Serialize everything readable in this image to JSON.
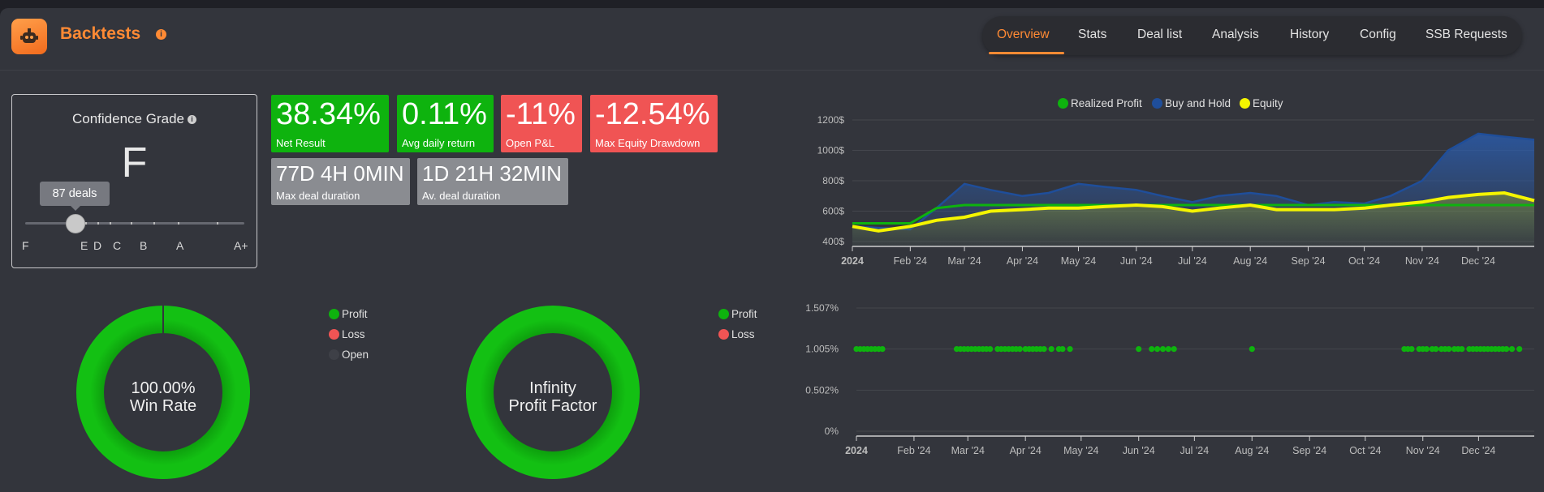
{
  "header": {
    "title": "Backtests",
    "info_icon": "info-icon",
    "logo_icon": "robot-icon",
    "tabs": [
      {
        "label": "Overview",
        "active": true
      },
      {
        "label": "Stats"
      },
      {
        "label": "Deal list"
      },
      {
        "label": "Analysis"
      },
      {
        "label": "History"
      },
      {
        "label": "Config"
      },
      {
        "label": "SSB Requests"
      }
    ],
    "menu_icon": "kebab-menu-icon"
  },
  "confidence": {
    "title": "Confidence Grade",
    "grade": "F",
    "tooltip": "87 deals",
    "scale": [
      "F",
      "E",
      "D",
      "C",
      "B",
      "A",
      "A+"
    ]
  },
  "tiles": [
    {
      "value": "38.34%",
      "label": "Net Result",
      "status": "positive"
    },
    {
      "value": "0.11%",
      "label": "Avg daily return",
      "status": "positive"
    },
    {
      "value": "-11%",
      "label": "Open P&L",
      "status": "negative"
    },
    {
      "value": "-12.54%",
      "label": "Max Equity Drawdown",
      "status": "negative"
    },
    {
      "value": "77D 4H 0MIN",
      "label": "Max deal duration",
      "status": "neutral"
    },
    {
      "value": "1D 21H 32MIN",
      "label": "Av. deal duration",
      "status": "neutral"
    }
  ],
  "colors": {
    "accent": "#ff8a34",
    "positive": "#0eb30e",
    "negative": "#f05454",
    "neutral": "#8a8c91",
    "buy_and_hold": "#1f4e9a",
    "equity": "#f5f500",
    "background": "#33353c"
  },
  "win_rate_donut": {
    "value": "100.00%",
    "label": "Win Rate",
    "legend": [
      "Profit",
      "Loss",
      "Open"
    ]
  },
  "profit_factor_donut": {
    "value": "Infinity",
    "label": "Profit Factor",
    "legend": [
      "Profit",
      "Loss"
    ]
  },
  "chart_data": [
    {
      "type": "area",
      "legend_position": "top-center",
      "grid": true,
      "y_tick_labels": [
        "400$",
        "600$",
        "800$",
        "1000$",
        "1200$"
      ],
      "ylim": [
        400,
        1200
      ],
      "x_tick_labels": [
        "2024",
        "Feb '24",
        "Mar '24",
        "Apr '24",
        "May '24",
        "Jun '24",
        "Jul '24",
        "Aug '24",
        "Sep '24",
        "Oct '24",
        "Nov '24",
        "Dec '24"
      ],
      "x": [
        "2024-01-01",
        "2024-01-15",
        "2024-02-01",
        "2024-02-15",
        "2024-03-01",
        "2024-03-15",
        "2024-04-01",
        "2024-04-15",
        "2024-05-01",
        "2024-05-15",
        "2024-06-01",
        "2024-06-15",
        "2024-07-01",
        "2024-07-15",
        "2024-08-01",
        "2024-08-15",
        "2024-09-01",
        "2024-09-15",
        "2024-10-01",
        "2024-10-15",
        "2024-11-01",
        "2024-11-15",
        "2024-12-01",
        "2024-12-15",
        "2024-12-31"
      ],
      "series": [
        {
          "name": "Realized Profit",
          "values": [
            520,
            520,
            520,
            620,
            640,
            640,
            640,
            640,
            640,
            640,
            640,
            640,
            640,
            640,
            640,
            640,
            640,
            640,
            640,
            640,
            640,
            640,
            640,
            640,
            640
          ]
        },
        {
          "name": "Buy and Hold",
          "values": [
            500,
            490,
            480,
            620,
            780,
            740,
            700,
            720,
            780,
            760,
            740,
            700,
            660,
            700,
            720,
            700,
            640,
            660,
            650,
            700,
            800,
            1000,
            1110,
            1090,
            1070
          ]
        },
        {
          "name": "Equity",
          "values": [
            500,
            470,
            500,
            540,
            560,
            600,
            610,
            620,
            620,
            630,
            640,
            630,
            600,
            620,
            640,
            610,
            610,
            610,
            620,
            640,
            660,
            690,
            710,
            720,
            670
          ]
        }
      ]
    },
    {
      "type": "scatter",
      "grid": true,
      "y_tick_labels": [
        "0%",
        "0.502%",
        "1.005%",
        "1.507%"
      ],
      "ylim": [
        0,
        1.507
      ],
      "x_tick_labels": [
        "2024",
        "Feb '24",
        "Mar '24",
        "Apr '24",
        "May '24",
        "Jun '24",
        "Jul '24",
        "Aug '24",
        "Sep '24",
        "Oct '24",
        "Nov '24",
        "Dec '24"
      ],
      "series": [
        {
          "name": "Profit",
          "x": [
            "2024-01-01",
            "2024-01-03",
            "2024-01-05",
            "2024-01-07",
            "2024-01-09",
            "2024-01-11",
            "2024-01-13",
            "2024-01-15",
            "2024-02-24",
            "2024-02-26",
            "2024-02-28",
            "2024-03-01",
            "2024-03-03",
            "2024-03-05",
            "2024-03-07",
            "2024-03-09",
            "2024-03-11",
            "2024-03-13",
            "2024-03-17",
            "2024-03-19",
            "2024-03-21",
            "2024-03-23",
            "2024-03-25",
            "2024-03-27",
            "2024-03-29",
            "2024-04-01",
            "2024-04-03",
            "2024-04-05",
            "2024-04-07",
            "2024-04-09",
            "2024-04-11",
            "2024-04-15",
            "2024-04-19",
            "2024-04-21",
            "2024-04-25",
            "2024-06-01",
            "2024-06-08",
            "2024-06-11",
            "2024-06-14",
            "2024-06-17",
            "2024-06-20",
            "2024-08-01",
            "2024-10-22",
            "2024-10-24",
            "2024-10-26",
            "2024-10-30",
            "2024-11-01",
            "2024-11-03",
            "2024-11-06",
            "2024-11-08",
            "2024-11-11",
            "2024-11-13",
            "2024-11-15",
            "2024-11-18",
            "2024-11-20",
            "2024-11-22",
            "2024-11-26",
            "2024-11-28",
            "2024-11-30",
            "2024-12-02",
            "2024-12-04",
            "2024-12-06",
            "2024-12-08",
            "2024-12-10",
            "2024-12-12",
            "2024-12-14",
            "2024-12-16",
            "2024-12-19",
            "2024-12-23"
          ],
          "values": [
            1.005,
            1.005,
            1.005,
            1.005,
            1.005,
            1.005,
            1.005,
            1.005,
            1.005,
            1.005,
            1.005,
            1.005,
            1.005,
            1.005,
            1.005,
            1.005,
            1.005,
            1.005,
            1.005,
            1.005,
            1.005,
            1.005,
            1.005,
            1.005,
            1.005,
            1.005,
            1.005,
            1.005,
            1.005,
            1.005,
            1.005,
            1.005,
            1.005,
            1.005,
            1.005,
            1.005,
            1.005,
            1.005,
            1.005,
            1.005,
            1.005,
            1.005,
            1.005,
            1.005,
            1.005,
            1.005,
            1.005,
            1.005,
            1.005,
            1.005,
            1.005,
            1.005,
            1.005,
            1.005,
            1.005,
            1.005,
            1.005,
            1.005,
            1.005,
            1.005,
            1.005,
            1.005,
            1.005,
            1.005,
            1.005,
            1.005,
            1.005,
            1.005,
            1.005
          ]
        }
      ]
    }
  ],
  "equity_legend": [
    "Realized Profit",
    "Buy and Hold",
    "Equity"
  ]
}
